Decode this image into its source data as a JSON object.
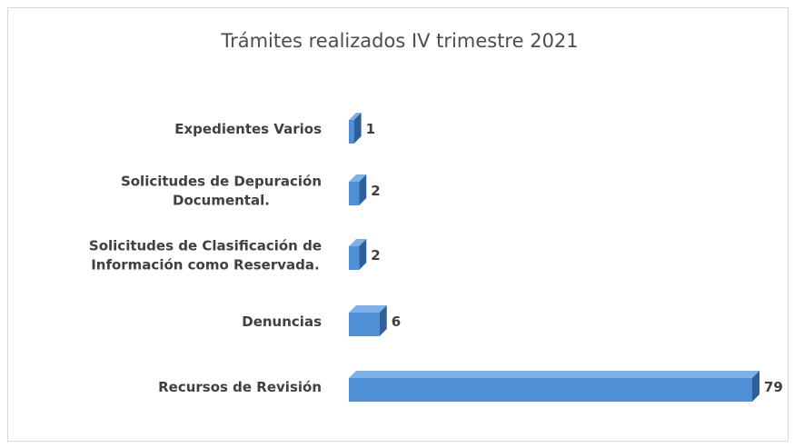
{
  "chart_data": {
    "type": "bar",
    "orientation": "horizontal",
    "style": "3d",
    "title": "Trámites realizados IV trimestre 2021",
    "categories": [
      [
        "Expedientes Varios"
      ],
      [
        "Solicitudes de Depuración",
        "Documental."
      ],
      [
        "Solicitudes de Clasificación de",
        "Información como Reservada."
      ],
      [
        "Denuncias"
      ],
      [
        "Recursos de Revisión"
      ]
    ],
    "values": [
      1,
      2,
      2,
      6,
      79
    ],
    "value_labels": [
      "1",
      "2",
      "2",
      "6",
      "79"
    ],
    "bar_color": "#4f8fd6",
    "bar_side_color": "#2f5f99",
    "bar_top_color": "#7fb0e6",
    "grid": false,
    "legend": "none"
  }
}
